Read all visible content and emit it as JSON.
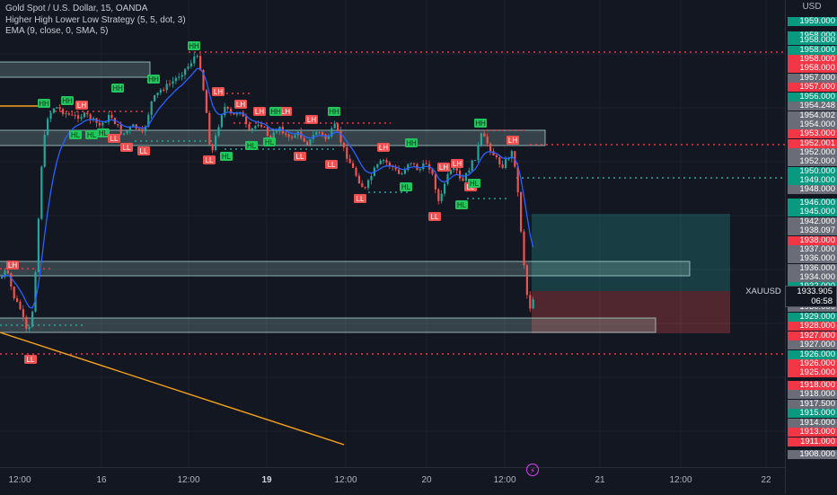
{
  "legend": {
    "symbol_line": "Gold Spot / U.S. Dollar, 15, OANDA",
    "strategy_line": "Higher High Lower Low Strategy (5, 5, dot, 3)",
    "ema_line": "EMA (9, close, 0, SMA, 5)"
  },
  "price_axis": {
    "currency": "USD",
    "labels": [
      {
        "text": "1959.000",
        "kind": "green"
      },
      {
        "text": "1958.000",
        "kind": "green"
      },
      {
        "text": "1958.000",
        "kind": "green"
      },
      {
        "text": "1958.000",
        "kind": "green"
      },
      {
        "text": "1958.000",
        "kind": "red"
      },
      {
        "text": "1958.000",
        "kind": "red"
      },
      {
        "text": "1957.000",
        "kind": "gray"
      },
      {
        "text": "1957.000",
        "kind": "red"
      },
      {
        "text": "1956.000",
        "kind": "green"
      },
      {
        "text": "1954.248",
        "kind": "gray"
      },
      {
        "text": "1954.002",
        "kind": "gray"
      },
      {
        "text": "1954.000",
        "kind": "gray"
      },
      {
        "text": "1953.000",
        "kind": "red"
      },
      {
        "text": "1952.001",
        "kind": "red"
      },
      {
        "text": "1952.000",
        "kind": "gray"
      },
      {
        "text": "1952.000",
        "kind": "gray"
      },
      {
        "text": "1950.000",
        "kind": "green"
      },
      {
        "text": "1949.000",
        "kind": "green"
      },
      {
        "text": "1948.000",
        "kind": "gray"
      },
      {
        "text": "1946.000",
        "kind": "green"
      },
      {
        "text": "1945.000",
        "kind": "green"
      },
      {
        "text": "1942.000",
        "kind": "gray"
      },
      {
        "text": "1938.097",
        "kind": "gray"
      },
      {
        "text": "1938.000",
        "kind": "red"
      },
      {
        "text": "1937.000",
        "kind": "gray"
      },
      {
        "text": "1936.000",
        "kind": "gray"
      },
      {
        "text": "1936.000",
        "kind": "gray"
      },
      {
        "text": "1934.000",
        "kind": "gray"
      },
      {
        "text": "1932.000",
        "kind": "green"
      },
      {
        "text": "1930.000",
        "kind": "gray"
      },
      {
        "text": "1929.000",
        "kind": "green"
      },
      {
        "text": "1928.000",
        "kind": "red"
      },
      {
        "text": "1927.000",
        "kind": "red"
      },
      {
        "text": "1927.000",
        "kind": "gray"
      },
      {
        "text": "1926.000",
        "kind": "green"
      },
      {
        "text": "1926.000",
        "kind": "red"
      },
      {
        "text": "1925.000",
        "kind": "red"
      },
      {
        "text": "1918.000",
        "kind": "red"
      },
      {
        "text": "1918.000",
        "kind": "gray"
      },
      {
        "text": "1917.500",
        "kind": "gray"
      },
      {
        "text": "1915.000",
        "kind": "green"
      },
      {
        "text": "1914.000",
        "kind": "gray"
      },
      {
        "text": "1913.000",
        "kind": "red"
      },
      {
        "text": "1911.000",
        "kind": "red"
      },
      {
        "text": "1908.000",
        "kind": "gray"
      }
    ],
    "last_price": "1933.905",
    "countdown": "06:58",
    "symbol_tag": "XAUUSD"
  },
  "time_axis": [
    {
      "text": "12:00",
      "bold": false
    },
    {
      "text": "16",
      "bold": false
    },
    {
      "text": "12:00",
      "bold": false
    },
    {
      "text": "19",
      "bold": true
    },
    {
      "text": "12:00",
      "bold": false
    },
    {
      "text": "20",
      "bold": false
    },
    {
      "text": "12:00",
      "bold": false
    },
    {
      "text": "21",
      "bold": false
    },
    {
      "text": "12:00",
      "bold": false
    },
    {
      "text": "22",
      "bold": false
    }
  ],
  "colors": {
    "background": "#131722",
    "bull": "#26a69a",
    "bear": "#ef5350",
    "green_label": "#089981",
    "red_label": "#f23645",
    "gray_label": "#6a6d78",
    "ema": "#2962ff",
    "trend": "#f7a21b"
  },
  "chart_data": {
    "type": "candlestick",
    "markers": [
      {
        "text": "HH",
        "kind": "green"
      },
      {
        "text": "HH",
        "kind": "green"
      },
      {
        "text": "HH",
        "kind": "green"
      },
      {
        "text": "HH",
        "kind": "green"
      },
      {
        "text": "LH",
        "kind": "red"
      },
      {
        "text": "LH",
        "kind": "red"
      },
      {
        "text": "HL",
        "kind": "green"
      },
      {
        "text": "HL",
        "kind": "green"
      },
      {
        "text": "HL",
        "kind": "green"
      },
      {
        "text": "LL",
        "kind": "red"
      },
      {
        "text": "LL",
        "kind": "red"
      },
      {
        "text": "LL",
        "kind": "red"
      },
      {
        "text": "HH",
        "kind": "green"
      },
      {
        "text": "LH",
        "kind": "red"
      },
      {
        "text": "LH",
        "kind": "red"
      },
      {
        "text": "LH",
        "kind": "red"
      },
      {
        "text": "LH",
        "kind": "red"
      },
      {
        "text": "HH",
        "kind": "green"
      },
      {
        "text": "HH",
        "kind": "green"
      },
      {
        "text": "LH",
        "kind": "red"
      },
      {
        "text": "LL",
        "kind": "red"
      },
      {
        "text": "HL",
        "kind": "green"
      },
      {
        "text": "HL",
        "kind": "green"
      },
      {
        "text": "HL",
        "kind": "green"
      },
      {
        "text": "LL",
        "kind": "red"
      },
      {
        "text": "LL",
        "kind": "red"
      },
      {
        "text": "HH",
        "kind": "green"
      },
      {
        "text": "LH",
        "kind": "red"
      },
      {
        "text": "HH",
        "kind": "green"
      },
      {
        "text": "LL",
        "kind": "red"
      },
      {
        "text": "HL",
        "kind": "green"
      },
      {
        "text": "LH",
        "kind": "red"
      },
      {
        "text": "LH",
        "kind": "red"
      },
      {
        "text": "LL",
        "kind": "red"
      },
      {
        "text": "LL",
        "kind": "red"
      },
      {
        "text": "HL",
        "kind": "green"
      },
      {
        "text": "LL",
        "kind": "red"
      },
      {
        "text": "HL",
        "kind": "green"
      },
      {
        "text": "HH",
        "kind": "green"
      },
      {
        "text": "LH",
        "kind": "red"
      },
      {
        "text": "HL",
        "kind": "green"
      },
      {
        "text": "LH",
        "kind": "red"
      },
      {
        "text": "LL",
        "kind": "red"
      }
    ]
  }
}
